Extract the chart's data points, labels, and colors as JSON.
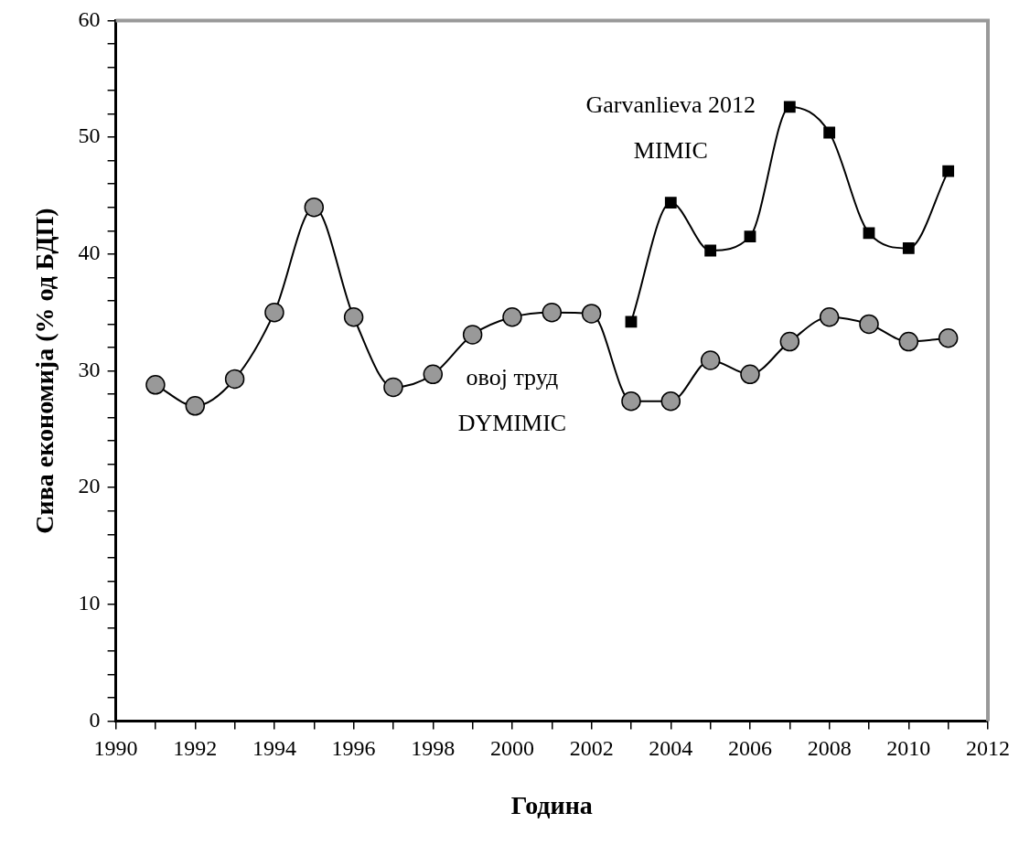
{
  "chart_data": {
    "type": "line",
    "xlabel": "Година",
    "ylabel": "Сива економија (% од БДП)",
    "x": [
      1991,
      1992,
      1993,
      1994,
      1995,
      1996,
      1997,
      1998,
      1999,
      2000,
      2001,
      2002,
      2003,
      2004,
      2005,
      2006,
      2007,
      2008,
      2009,
      2010,
      2011
    ],
    "series": [
      {
        "name": "овој труд\nDYMIMIC",
        "color": "#999999",
        "marker": "circle",
        "values": [
          28.8,
          27.0,
          29.3,
          35.0,
          44.0,
          34.6,
          28.6,
          29.7,
          33.1,
          34.6,
          35.0,
          34.9,
          27.4,
          27.4,
          30.9,
          29.7,
          32.5,
          34.6,
          34.0,
          32.5,
          32.8
        ]
      },
      {
        "name": "Garvanlieva 2012\nMIMIC",
        "color": "#000000",
        "marker": "square",
        "values": [
          null,
          null,
          null,
          null,
          null,
          null,
          null,
          null,
          null,
          null,
          null,
          null,
          34.2,
          44.4,
          40.3,
          41.5,
          52.6,
          50.4,
          41.8,
          40.5,
          47.1
        ]
      }
    ],
    "xlim": [
      1990,
      2012
    ],
    "xticks": [
      1990,
      {
        "value": 1991,
        "label": null
      },
      1992,
      {
        "value": 1993,
        "label": null
      },
      1994,
      {
        "value": 1995,
        "label": null
      },
      1996,
      {
        "value": 1997,
        "label": null
      },
      1998,
      {
        "value": 1999,
        "label": null
      },
      2000,
      {
        "value": 2001,
        "label": null
      },
      2002,
      {
        "value": 2003,
        "label": null
      },
      2004,
      {
        "value": 2005,
        "label": null
      },
      2006,
      {
        "value": 2007,
        "label": null
      },
      2008,
      {
        "value": 2009,
        "label": null
      },
      2010,
      {
        "value": 2011,
        "label": null
      },
      2012
    ],
    "ylim": [
      0,
      60
    ],
    "yticks": [
      0,
      {
        "value": 2,
        "label": null
      },
      {
        "value": 4,
        "label": null
      },
      {
        "value": 6,
        "label": null
      },
      {
        "value": 8,
        "label": null
      },
      10,
      {
        "value": 12,
        "label": null
      },
      {
        "value": 14,
        "label": null
      },
      {
        "value": 16,
        "label": null
      },
      {
        "value": 18,
        "label": null
      },
      20,
      {
        "value": 22,
        "label": null
      },
      {
        "value": 24,
        "label": null
      },
      {
        "value": 26,
        "label": null
      },
      {
        "value": 28,
        "label": null
      },
      30,
      {
        "value": 32,
        "label": null
      },
      {
        "value": 34,
        "label": null
      },
      {
        "value": 36,
        "label": null
      },
      {
        "value": 38,
        "label": null
      },
      40,
      {
        "value": 42,
        "label": null
      },
      {
        "value": 44,
        "label": null
      },
      {
        "value": 46,
        "label": null
      },
      {
        "value": 48,
        "label": null
      },
      50,
      {
        "value": 52,
        "label": null
      },
      {
        "value": 54,
        "label": null
      },
      {
        "value": 56,
        "label": null
      },
      {
        "value": 58,
        "label": null
      },
      60
    ],
    "grid": false,
    "legend": false,
    "line_style": "solid"
  }
}
